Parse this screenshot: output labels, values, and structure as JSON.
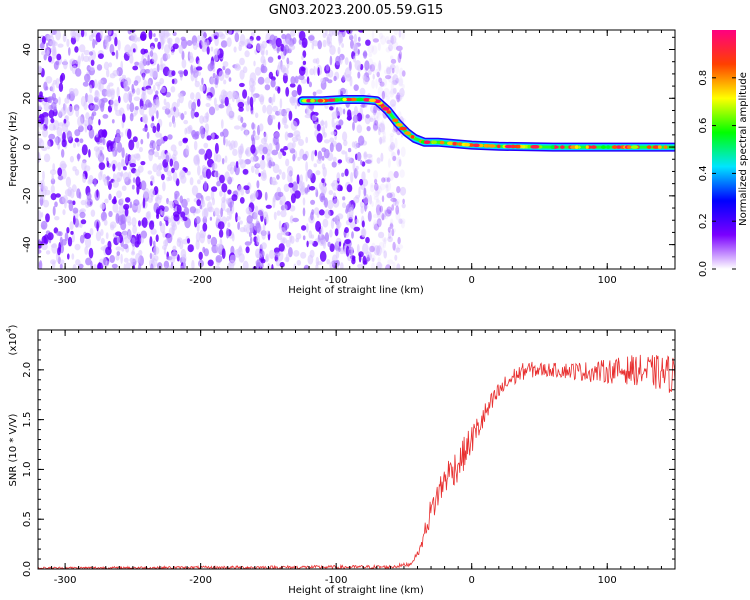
{
  "title": "GN03.2023.200.05.59.G15",
  "chart_data": [
    {
      "type": "heatmap",
      "xlabel": "Height of straight line (km)",
      "ylabel": "Frequency (Hz)",
      "xlim": [
        -320,
        150
      ],
      "ylim": [
        -50,
        48
      ],
      "xticks": [
        -300,
        -200,
        -100,
        0,
        100
      ],
      "yticks": [
        -40,
        -20,
        0,
        20,
        40
      ],
      "colorbar": {
        "label": "Normalized spectral amplitude",
        "range": [
          0,
          1
        ],
        "ticks": [
          "0.0",
          "0.2",
          "0.4",
          "0.6",
          "0.8"
        ],
        "tick_values": [
          0,
          0.2,
          0.4,
          0.6,
          0.8
        ],
        "colormap": [
          "#ffffff",
          "#7a00ff",
          "#0000ff",
          "#00e5ff",
          "#00ff00",
          "#ffff00",
          "#ff4000",
          "#ff0080"
        ]
      },
      "noise_region_x": [
        -320,
        -60
      ],
      "signal_trace": [
        {
          "x": -125,
          "y": 19
        },
        {
          "x": -110,
          "y": 19
        },
        {
          "x": -95,
          "y": 19.5
        },
        {
          "x": -80,
          "y": 19.5
        },
        {
          "x": -70,
          "y": 19
        },
        {
          "x": -62,
          "y": 15
        },
        {
          "x": -55,
          "y": 10
        },
        {
          "x": -48,
          "y": 6
        },
        {
          "x": -42,
          "y": 3.5
        },
        {
          "x": -35,
          "y": 2
        },
        {
          "x": -25,
          "y": 2
        },
        {
          "x": -15,
          "y": 1.5
        },
        {
          "x": 0,
          "y": 0.8
        },
        {
          "x": 20,
          "y": 0.3
        },
        {
          "x": 60,
          "y": 0
        },
        {
          "x": 100,
          "y": 0
        },
        {
          "x": 150,
          "y": 0
        }
      ]
    },
    {
      "type": "line",
      "xlabel": "Height of straight line (km)",
      "ylabel": "SNR (10 * V/V)",
      "scale_label": "(x10",
      "scale_exponent": "4",
      "scale_close": ")",
      "xlim": [
        -320,
        150
      ],
      "ylim": [
        0,
        2.4
      ],
      "xticks": [
        -300,
        -200,
        -100,
        0,
        100
      ],
      "yticks": [
        "0.0",
        "0.5",
        "1.0",
        "1.5",
        "2.0"
      ],
      "ytick_values": [
        0,
        0.5,
        1.0,
        1.5,
        2.0
      ],
      "series": [
        {
          "color": "#e83030",
          "envelope": [
            {
              "x": -320,
              "y": 0.01
            },
            {
              "x": -60,
              "y": 0.02
            },
            {
              "x": -45,
              "y": 0.05
            },
            {
              "x": -38,
              "y": 0.2
            },
            {
              "x": -32,
              "y": 0.5
            },
            {
              "x": -25,
              "y": 0.75
            },
            {
              "x": -18,
              "y": 0.95
            },
            {
              "x": -10,
              "y": 1.05
            },
            {
              "x": 0,
              "y": 1.3
            },
            {
              "x": 10,
              "y": 1.55
            },
            {
              "x": 20,
              "y": 1.78
            },
            {
              "x": 30,
              "y": 1.92
            },
            {
              "x": 40,
              "y": 2.0
            },
            {
              "x": 60,
              "y": 2.0
            },
            {
              "x": 90,
              "y": 1.98
            },
            {
              "x": 120,
              "y": 2.0
            },
            {
              "x": 150,
              "y": 1.95
            }
          ],
          "noise_amplitude": [
            {
              "x": -320,
              "y": 0.01
            },
            {
              "x": -40,
              "y": 0.02
            },
            {
              "x": -30,
              "y": 0.15
            },
            {
              "x": -10,
              "y": 0.18
            },
            {
              "x": 20,
              "y": 0.1
            },
            {
              "x": 60,
              "y": 0.07
            },
            {
              "x": 100,
              "y": 0.12
            },
            {
              "x": 150,
              "y": 0.2
            }
          ]
        }
      ]
    }
  ]
}
